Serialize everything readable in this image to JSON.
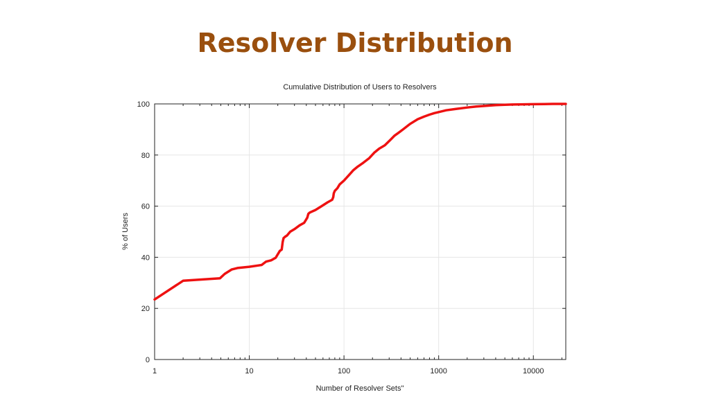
{
  "slide": {
    "title": "Resolver Distribution"
  },
  "colors": {
    "title": "#9a4f0e",
    "series": "#ee1111",
    "grid": "#e6e6e6",
    "axis": "#222222"
  },
  "chart_data": {
    "type": "line",
    "title": "Cumulative Distribution of Users to Resolvers",
    "xlabel": "Number of Resolver Sets\"",
    "ylabel": "% of Users",
    "xscale": "log",
    "xlim": [
      1,
      22000
    ],
    "ylim": [
      0,
      100
    ],
    "grid": true,
    "legend": "none",
    "xticks": [
      {
        "value": 1,
        "label": "1"
      },
      {
        "value": 10,
        "label": "10"
      },
      {
        "value": 100,
        "label": "100"
      },
      {
        "value": 1000,
        "label": "1000"
      },
      {
        "value": 10000,
        "label": "10000"
      }
    ],
    "yticks": [
      {
        "value": 0,
        "label": "0"
      },
      {
        "value": 20,
        "label": "20"
      },
      {
        "value": 40,
        "label": "40"
      },
      {
        "value": 60,
        "label": "60"
      },
      {
        "value": 80,
        "label": "80"
      },
      {
        "value": 100,
        "label": "100"
      }
    ],
    "series": [
      {
        "color": "#ee1111",
        "x": [
          1,
          2,
          4.9,
          5.5,
          6.5,
          7.5,
          10,
          12.5,
          13.5,
          15,
          17,
          19,
          21,
          22,
          22.5,
          23,
          23.8,
          25,
          27,
          30,
          34,
          38,
          41,
          42,
          43.5,
          50,
          58,
          67,
          75,
          77,
          78,
          80,
          85,
          90,
          100,
          112,
          125,
          140,
          160,
          185,
          210,
          235,
          270,
          310,
          340,
          380,
          420,
          500,
          600,
          700,
          800,
          900,
          1000,
          1200,
          1500,
          2000,
          2500,
          3000,
          4000,
          5000,
          6000,
          8000,
          10000,
          13000,
          16000,
          20000,
          22000
        ],
        "y": [
          23.5,
          30.8,
          31.8,
          33.5,
          35.2,
          35.8,
          36.3,
          36.8,
          37.0,
          38.3,
          38.8,
          39.8,
          42.5,
          43.0,
          46.0,
          47.5,
          48.0,
          48.5,
          50.0,
          51.0,
          52.5,
          53.5,
          55.5,
          57.0,
          57.5,
          58.5,
          60.0,
          61.5,
          62.5,
          63.5,
          65.0,
          66.0,
          67.0,
          68.5,
          70.0,
          72.0,
          74.0,
          75.5,
          77.0,
          78.8,
          81.0,
          82.5,
          83.8,
          86.0,
          87.5,
          88.8,
          90.0,
          92.2,
          94.0,
          95.0,
          95.8,
          96.4,
          96.8,
          97.5,
          98.0,
          98.6,
          99.0,
          99.2,
          99.5,
          99.65,
          99.75,
          99.85,
          99.9,
          99.95,
          100.0,
          100.0,
          100.0
        ]
      }
    ]
  }
}
